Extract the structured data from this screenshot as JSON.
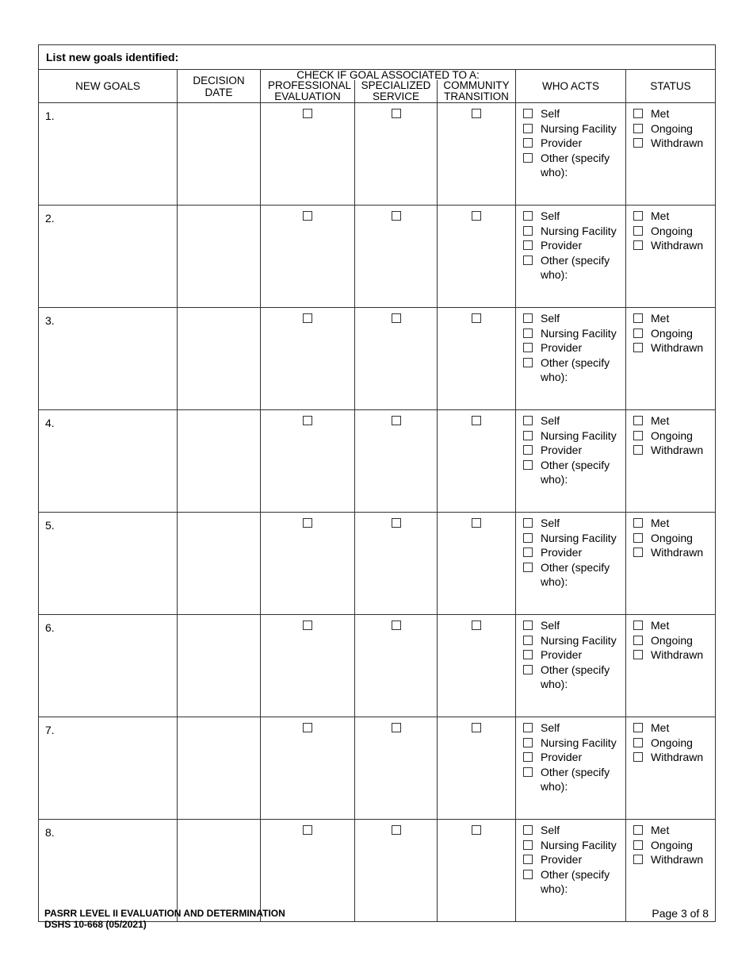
{
  "form_title": "List new goals identified:",
  "headers": {
    "new_goals": "NEW GOALS",
    "decision_date": "DECISION DATE",
    "check_group": "CHECK IF GOAL ASSOCIATED TO A:",
    "professional_evaluation": "PROFESSIONAL EVALUATION",
    "specialized_service": "SPECIALIZED SERVICE",
    "community_transition": "COMMUNITY TRANSITION",
    "who_acts": "WHO ACTS",
    "status": "STATUS"
  },
  "who_acts_options": [
    "Self",
    "Nursing Facility",
    "Provider",
    "Other (specify who):"
  ],
  "status_options": [
    "Met",
    "Ongoing",
    "Withdrawn"
  ],
  "rows": [
    {
      "label": "1."
    },
    {
      "label": "2."
    },
    {
      "label": "3."
    },
    {
      "label": "4."
    },
    {
      "label": "5."
    },
    {
      "label": "6."
    },
    {
      "label": "7."
    },
    {
      "label": "8."
    }
  ],
  "footer": {
    "form_name": "PASRR LEVEL II EVALUATION AND DETERMINATION",
    "form_number": "DSHS 10-668 (05/2021)",
    "page": "Page 3 of 8"
  }
}
